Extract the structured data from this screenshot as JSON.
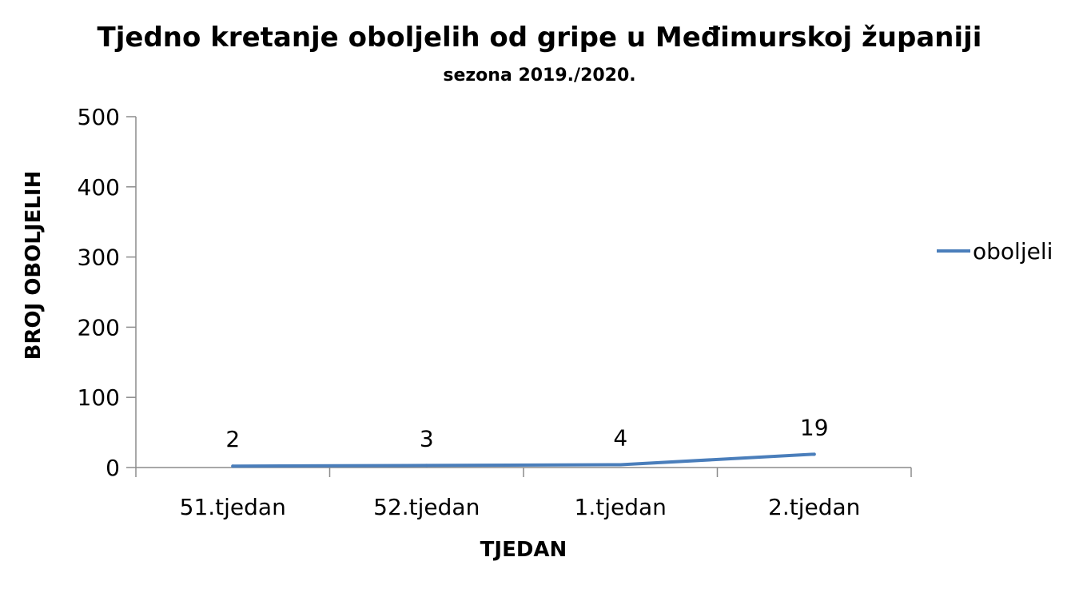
{
  "chart_data": {
    "type": "line",
    "title": "Tjedno kretanje oboljelih od gripe u Međimurskoj županiji",
    "subtitle": "sezona 2019./2020.",
    "xlabel": "TJEDAN",
    "ylabel": "BROJ OBOLJELIH",
    "categories": [
      "51.tjedan",
      "52.tjedan",
      "1.tjedan",
      "2.tjedan"
    ],
    "series": [
      {
        "name": "oboljeli",
        "values": [
          2,
          3,
          4,
          19
        ],
        "color": "#4a7ebb"
      }
    ],
    "data_labels": [
      "2",
      "3",
      "4",
      "19"
    ],
    "ylim": [
      0,
      500
    ],
    "yticks": [
      "0",
      "100",
      "200",
      "300",
      "400",
      "500"
    ],
    "grid": false,
    "legend_position": "right",
    "axis_color": "#8c8c8c"
  }
}
